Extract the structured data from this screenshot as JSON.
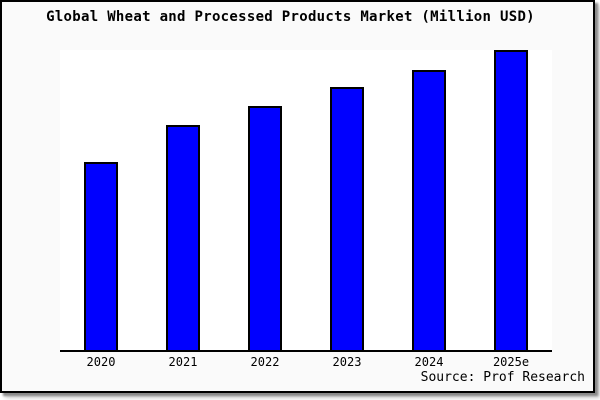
{
  "chart_data": {
    "type": "bar",
    "title": "Global Wheat and Processed Products Market (Million USD)",
    "categories": [
      "2020",
      "2021",
      "2022",
      "2023",
      "2024",
      "2025e"
    ],
    "values": [
      62.7,
      75.0,
      81.3,
      87.7,
      93.3,
      100.0
    ],
    "values_note": "No numeric y-axis labels visible; values are bar heights as percent of tallest bar (2025e)",
    "xlabel": "",
    "ylabel": "",
    "ylim": [
      0,
      100
    ],
    "grid": false,
    "legend_position": "none",
    "bar_color": "#0000FF",
    "bar_edge_color": "#000000",
    "canvas_background": "#FAFAFA",
    "plot_background": "#FFFFFF",
    "frame_border_color": "#000000"
  },
  "footer": {
    "source": "Source: Prof Research"
  }
}
